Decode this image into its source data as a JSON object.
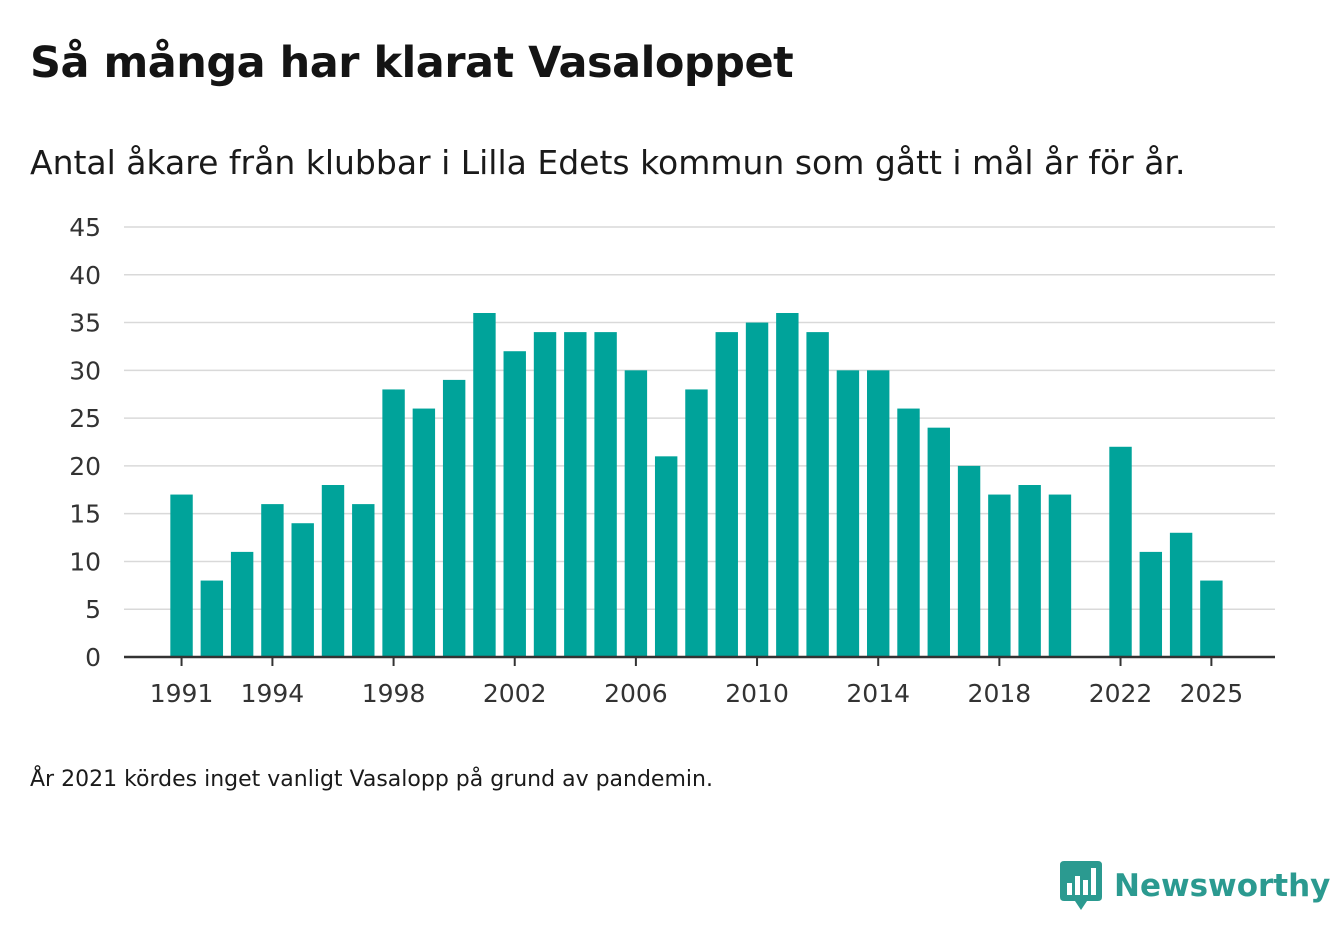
{
  "header": {
    "title": "Så många har klarat Vasaloppet",
    "subtitle": "Antal åkare från klubbar i Lilla Edets kommun som gått i mål år för år."
  },
  "footer": {
    "note": "År 2021 kördes inget vanligt Vasalopp på grund av pandemin.",
    "brand": "Newsworthy",
    "brand_icon": "bar-chart-speech-bubble-icon"
  },
  "colors": {
    "bar": "#00a39a",
    "grid": "#d9d9d9",
    "axis": "#333333",
    "brand": "#2b9a90"
  },
  "chart_data": {
    "type": "bar",
    "title": "Så många har klarat Vasaloppet",
    "subtitle": "Antal åkare från klubbar i Lilla Edets kommun som gått i mål år för år.",
    "xlabel": "",
    "ylabel": "",
    "x": [
      1991,
      1992,
      1993,
      1994,
      1995,
      1996,
      1997,
      1998,
      1999,
      2000,
      2001,
      2002,
      2003,
      2004,
      2005,
      2006,
      2007,
      2008,
      2009,
      2010,
      2011,
      2012,
      2013,
      2014,
      2015,
      2016,
      2017,
      2018,
      2019,
      2020,
      2021,
      2022,
      2023,
      2024,
      2025
    ],
    "values": [
      17,
      8,
      11,
      16,
      14,
      18,
      16,
      28,
      26,
      29,
      36,
      32,
      34,
      34,
      34,
      30,
      21,
      28,
      34,
      35,
      36,
      34,
      30,
      30,
      26,
      24,
      20,
      17,
      18,
      17,
      null,
      22,
      11,
      13,
      8
    ],
    "xticks": [
      1991,
      1994,
      1998,
      2002,
      2006,
      2010,
      2014,
      2018,
      2022,
      2025
    ],
    "xlim": [
      1989.1,
      2027.1
    ],
    "yticks": [
      0,
      5,
      10,
      15,
      20,
      25,
      30,
      35,
      40,
      45
    ],
    "ylim": [
      0,
      45
    ],
    "grid": true,
    "legend": "none"
  }
}
